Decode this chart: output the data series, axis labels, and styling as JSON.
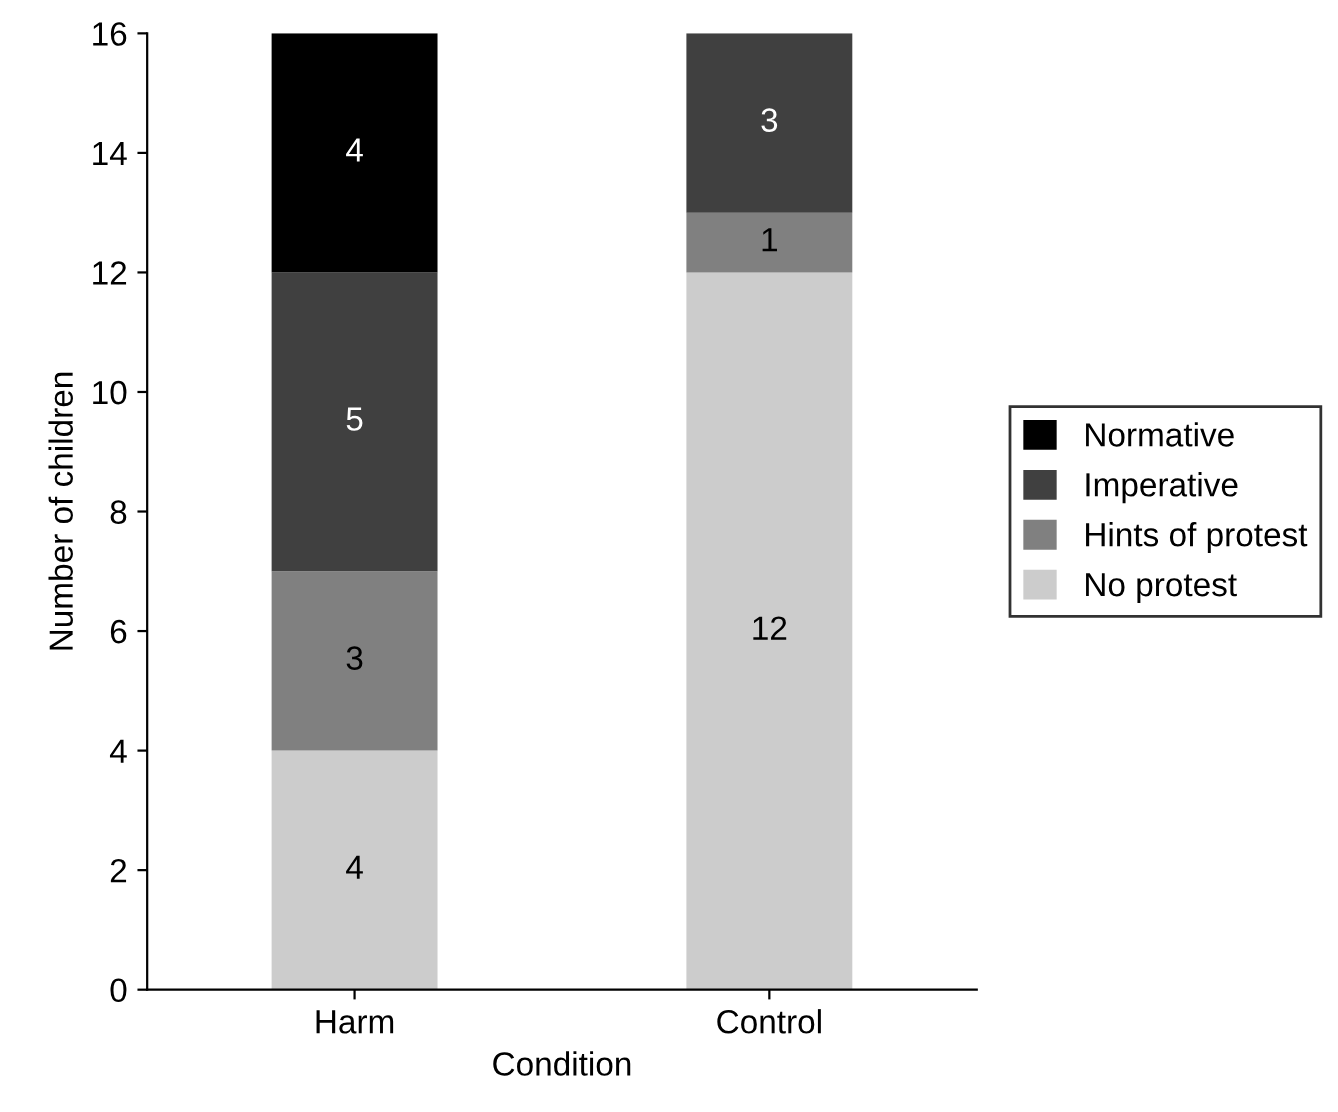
{
  "chart_data": {
    "type": "bar",
    "stacked": true,
    "xlabel": "Condition",
    "ylabel": "Number of children",
    "categories": [
      "Harm",
      "Control"
    ],
    "series": [
      {
        "name": "No protest",
        "color": "#cccccc",
        "values": [
          4,
          12
        ],
        "value_labels": [
          "4",
          "12"
        ]
      },
      {
        "name": "Hints of protest",
        "color": "#808080",
        "values": [
          3,
          1
        ],
        "value_labels": [
          "3",
          "1"
        ]
      },
      {
        "name": "Imperative",
        "color": "#404040",
        "values": [
          5,
          3
        ],
        "value_labels": [
          "5",
          "3"
        ]
      },
      {
        "name": "Normative",
        "color": "#000000",
        "values": [
          4,
          0
        ],
        "value_labels": [
          "4",
          null
        ]
      }
    ],
    "ylim": [
      0,
      16
    ],
    "yticks": [
      0,
      2,
      4,
      6,
      8,
      10,
      12,
      14,
      16
    ],
    "grid": false,
    "legend": "right"
  }
}
